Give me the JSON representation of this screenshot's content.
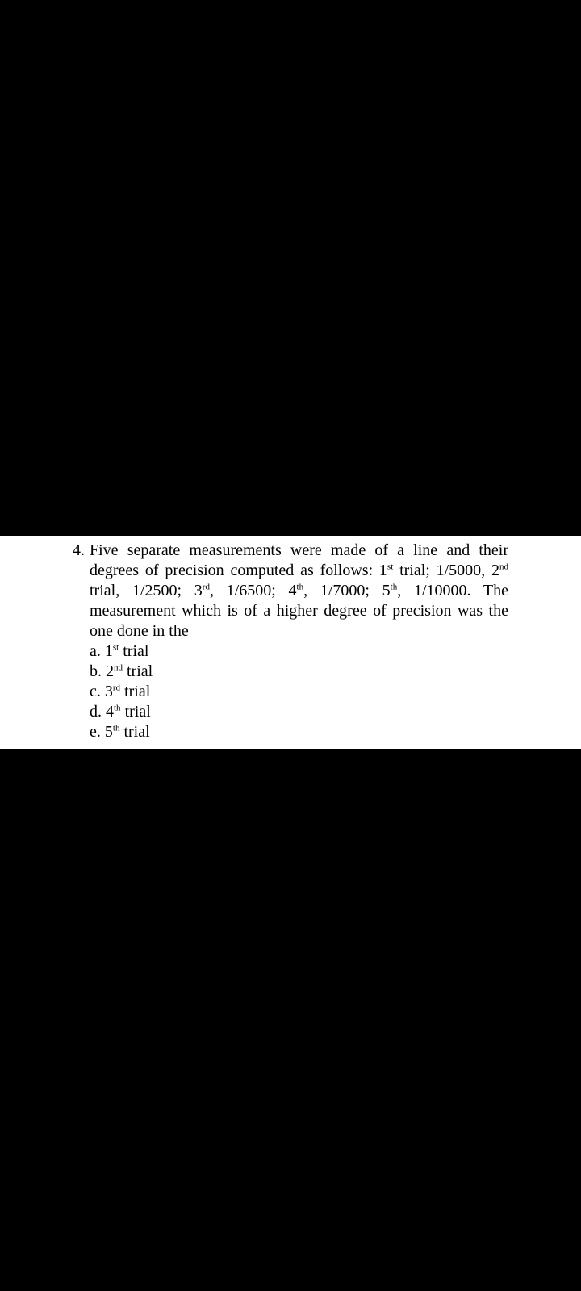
{
  "colors": {
    "background": "#000000",
    "paper": "#ffffff",
    "text": "#000000"
  },
  "typography": {
    "font_family": "Times New Roman",
    "font_size_pt": 15
  },
  "question": {
    "number": "4.",
    "stem_html": "Five separate measurements were made of a line and their degrees of precision computed as follows: 1<sup>st</sup> trial; 1/5000, 2<sup>nd</sup> trial, 1/2500; 3<sup>rd</sup>, 1/6500; 4<sup>th</sup>, 1/7000; 5<sup>th</sup>, 1/10000. The measurement which is of a higher degree of precision was the one done in the",
    "options": [
      {
        "letter": "a.",
        "text_html": "1<sup>st</sup> trial"
      },
      {
        "letter": "b.",
        "text_html": "2<sup>nd</sup> trial"
      },
      {
        "letter": "c.",
        "text_html": "3<sup>rd</sup> trial"
      },
      {
        "letter": "d.",
        "text_html": "4<sup>th</sup> trial"
      },
      {
        "letter": "e.",
        "text_html": "5<sup>th</sup> trial"
      }
    ]
  }
}
